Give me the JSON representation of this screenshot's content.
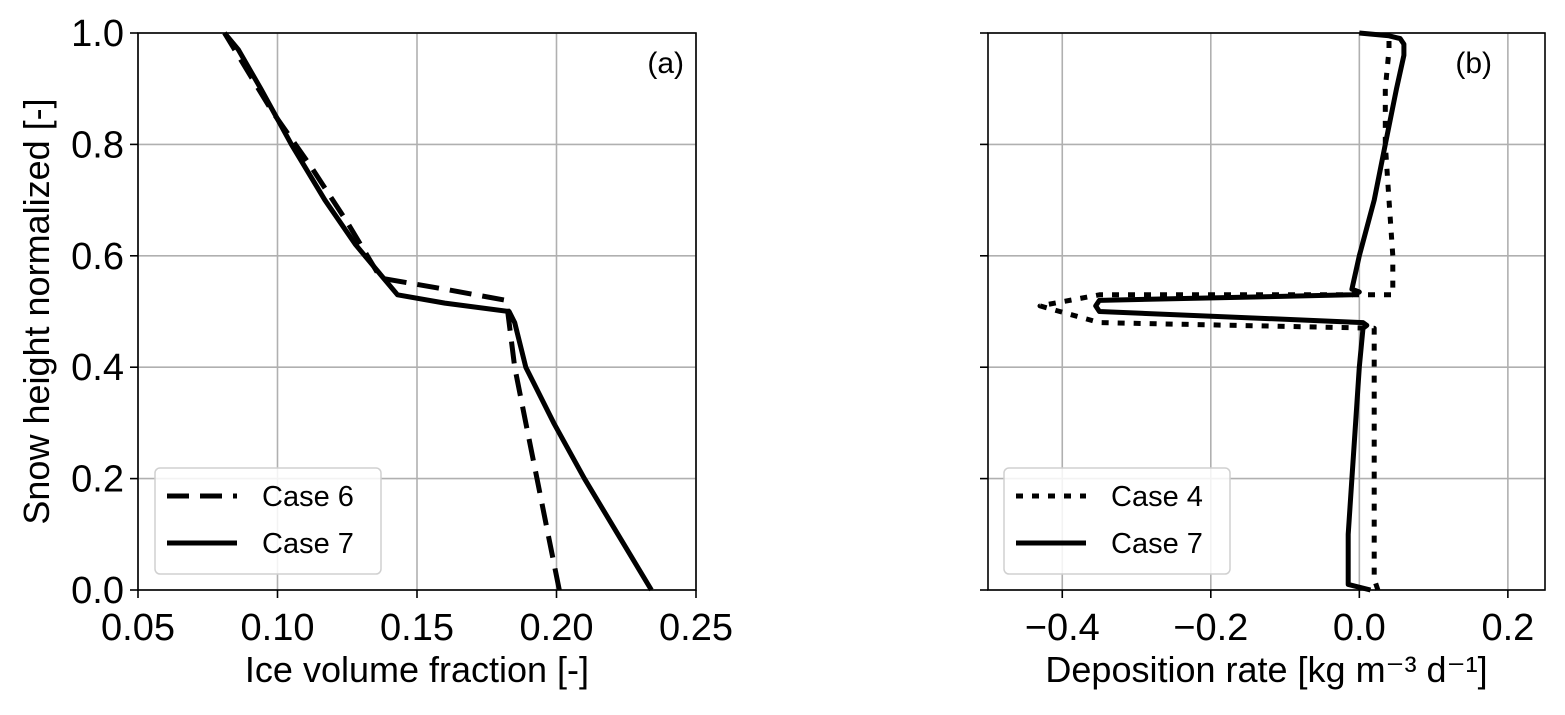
{
  "chart_data": [
    {
      "type": "line",
      "panel_label": "(a)",
      "xlabel": "Ice volume fraction [-]",
      "ylabel": "Snow height normalized [-]",
      "xlim": [
        0.05,
        0.25
      ],
      "ylim": [
        0.0,
        1.0
      ],
      "xticks": [
        0.05,
        0.1,
        0.15,
        0.2,
        0.25
      ],
      "xtick_labels": [
        "0.05",
        "0.10",
        "0.15",
        "0.20",
        "0.25"
      ],
      "yticks": [
        0.0,
        0.2,
        0.4,
        0.6,
        0.8,
        1.0
      ],
      "ytick_labels": [
        "0.0",
        "0.2",
        "0.4",
        "0.6",
        "0.8",
        "1.0"
      ],
      "grid": true,
      "legend_position": "lower-left",
      "series": [
        {
          "name": "Case 6",
          "style": "dashed",
          "x": [
            0.201,
            0.197,
            0.193,
            0.189,
            0.185,
            0.183,
            0.182,
            0.16,
            0.137,
            0.125,
            0.112,
            0.098,
            0.081
          ],
          "y": [
            0.0,
            0.1,
            0.2,
            0.3,
            0.4,
            0.48,
            0.52,
            0.54,
            0.56,
            0.66,
            0.76,
            0.86,
            1.0
          ]
        },
        {
          "name": "Case 7",
          "style": "solid",
          "x": [
            0.234,
            0.222,
            0.21,
            0.199,
            0.189,
            0.185,
            0.183,
            0.16,
            0.143,
            0.138,
            0.128,
            0.117,
            0.105,
            0.094,
            0.086,
            0.081
          ],
          "y": [
            0.0,
            0.1,
            0.2,
            0.3,
            0.4,
            0.48,
            0.5,
            0.515,
            0.53,
            0.56,
            0.62,
            0.7,
            0.8,
            0.9,
            0.97,
            1.0
          ]
        }
      ]
    },
    {
      "type": "line",
      "panel_label": "(b)",
      "xlabel": "Deposition rate [kg m⁻³ d⁻¹]",
      "ylabel": "",
      "xlim": [
        -0.5,
        0.25
      ],
      "ylim": [
        0.0,
        1.0
      ],
      "xticks": [
        -0.4,
        -0.2,
        0.0,
        0.2
      ],
      "xtick_labels": [
        "−0.4",
        "−0.2",
        "0.0",
        "0.2"
      ],
      "yticks": [
        0.0,
        0.2,
        0.4,
        0.6,
        0.8,
        1.0
      ],
      "ytick_labels": [
        "",
        "",
        "",
        "",
        "",
        ""
      ],
      "grid": true,
      "legend_position": "lower-left",
      "series": [
        {
          "name": "Case 4",
          "style": "dotted",
          "x": [
            0.025,
            0.02,
            0.02,
            0.02,
            0.02,
            0.02,
            -0.35,
            -0.43,
            -0.35,
            0.045,
            0.045,
            0.045,
            0.04,
            0.035,
            0.035,
            0.04,
            0.04
          ],
          "y": [
            0.0,
            0.02,
            0.1,
            0.2,
            0.3,
            0.47,
            0.48,
            0.51,
            0.53,
            0.53,
            0.54,
            0.6,
            0.7,
            0.8,
            0.9,
            0.97,
            1.0
          ]
        },
        {
          "name": "Case 7",
          "style": "solid",
          "x": [
            0.015,
            -0.015,
            -0.015,
            -0.01,
            -0.005,
            0.0,
            0.005,
            0.01,
            0.005,
            -0.35,
            -0.355,
            -0.35,
            -0.01,
            0.0,
            -0.01,
            0.0,
            0.02,
            0.035,
            0.05,
            0.06,
            0.06,
            0.055,
            0.04,
            0.0
          ],
          "y": [
            0.0,
            0.01,
            0.1,
            0.2,
            0.3,
            0.4,
            0.47,
            0.475,
            0.48,
            0.5,
            0.51,
            0.52,
            0.53,
            0.535,
            0.54,
            0.6,
            0.7,
            0.8,
            0.9,
            0.96,
            0.98,
            0.99,
            0.995,
            1.0
          ]
        }
      ]
    }
  ]
}
